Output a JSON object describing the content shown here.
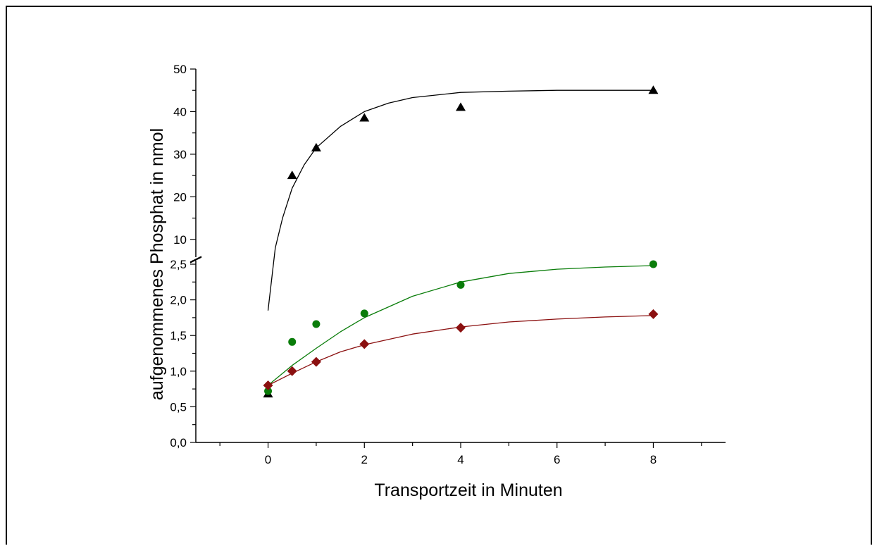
{
  "chart_data": {
    "type": "scatter",
    "xlabel": "Transportzeit in Minuten",
    "ylabel": "aufgenommenes Phosphat in nmol",
    "x_ticks": [
      "0",
      "2",
      "4",
      "6",
      "8"
    ],
    "y_ticks_lower": [
      "0,0",
      "0,5",
      "1,0",
      "1,5",
      "2,0",
      "2,5"
    ],
    "y_ticks_upper": [
      "10",
      "20",
      "30",
      "40",
      "50"
    ],
    "xlim": [
      -1.5,
      9.5
    ],
    "ylim_lower": [
      0,
      2.5
    ],
    "ylim_upper": [
      5,
      50
    ],
    "axis_break": true,
    "legend": false,
    "grid": false,
    "series": [
      {
        "marker": "triangle",
        "color": "#000000",
        "points": [
          [
            0,
            0.68
          ],
          [
            0.5,
            25
          ],
          [
            1,
            31.5
          ],
          [
            2,
            38.5
          ],
          [
            4,
            41
          ],
          [
            8,
            45
          ]
        ],
        "fit": [
          [
            0,
            1.85
          ],
          [
            0.15,
            8
          ],
          [
            0.3,
            15
          ],
          [
            0.5,
            22
          ],
          [
            0.75,
            27.5
          ],
          [
            1,
            31.5
          ],
          [
            1.5,
            36.5
          ],
          [
            2,
            40
          ],
          [
            2.5,
            42
          ],
          [
            3,
            43.3
          ],
          [
            4,
            44.5
          ],
          [
            5,
            44.8
          ],
          [
            6,
            45
          ],
          [
            8,
            45
          ]
        ]
      },
      {
        "marker": "circle",
        "color": "#0a7d0a",
        "points": [
          [
            0,
            0.72
          ],
          [
            0.5,
            1.41
          ],
          [
            1,
            1.66
          ],
          [
            2,
            1.81
          ],
          [
            4,
            2.21
          ],
          [
            8,
            2.5
          ]
        ],
        "fit": [
          [
            0,
            0.8
          ],
          [
            0.5,
            1.08
          ],
          [
            1,
            1.32
          ],
          [
            1.5,
            1.55
          ],
          [
            2,
            1.75
          ],
          [
            3,
            2.05
          ],
          [
            4,
            2.25
          ],
          [
            5,
            2.37
          ],
          [
            6,
            2.43
          ],
          [
            7,
            2.46
          ],
          [
            8,
            2.48
          ]
        ]
      },
      {
        "marker": "diamond",
        "color": "#8b1010",
        "points": [
          [
            0,
            0.8
          ],
          [
            0.5,
            1.0
          ],
          [
            1,
            1.13
          ],
          [
            2,
            1.38
          ],
          [
            4,
            1.61
          ],
          [
            8,
            1.8
          ]
        ],
        "fit": [
          [
            0,
            0.8
          ],
          [
            0.5,
            0.97
          ],
          [
            1,
            1.13
          ],
          [
            1.5,
            1.27
          ],
          [
            2,
            1.37
          ],
          [
            3,
            1.52
          ],
          [
            4,
            1.62
          ],
          [
            5,
            1.69
          ],
          [
            6,
            1.73
          ],
          [
            7,
            1.76
          ],
          [
            8,
            1.78
          ]
        ]
      }
    ]
  }
}
